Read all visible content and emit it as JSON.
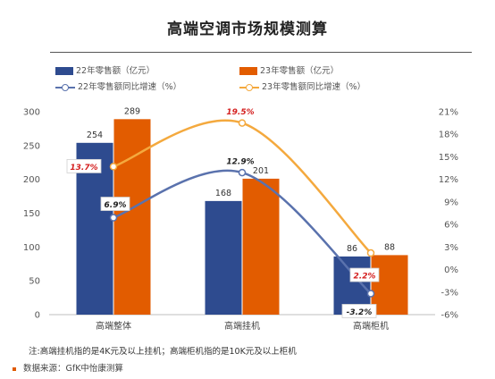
{
  "title": "高端空调市场规模测算",
  "legend": {
    "s1": "22年零售额（亿元）",
    "s2": "23年零售额（亿元）",
    "s3": "22年零售额同比增速（%）",
    "s4": "23年零售额同比增速（%）"
  },
  "footnote": "注:高端挂机指的是4K元及以上挂机；高端柜机指的是10K元及以上柜机",
  "source": "数据来源：GfK中怡康测算",
  "colors": {
    "bar22": "#2e4b8f",
    "bar23": "#e25c00",
    "line22": "#5a72ad",
    "line23": "#f4a93e",
    "pct_text": "#d42020"
  },
  "chart_data": {
    "type": "bar",
    "categories": [
      "高端整体",
      "高端挂机",
      "高端柜机"
    ],
    "series": [
      {
        "name": "22年零售额（亿元）",
        "type": "bar",
        "axis": "left",
        "values": [
          254,
          168,
          86
        ],
        "labels": [
          "254",
          "168",
          "86"
        ]
      },
      {
        "name": "23年零售额（亿元）",
        "type": "bar",
        "axis": "left",
        "values": [
          289,
          201,
          88
        ],
        "labels": [
          "289",
          "201",
          "88"
        ]
      },
      {
        "name": "22年零售额同比增速（%）",
        "type": "line",
        "axis": "right",
        "values": [
          6.9,
          12.9,
          -3.2
        ],
        "labels": [
          "6.9%",
          "12.9%",
          "-3.2%"
        ]
      },
      {
        "name": "23年零售额同比增速（%）",
        "type": "line",
        "axis": "right",
        "values": [
          13.7,
          19.5,
          2.2
        ],
        "labels": [
          "13.7%",
          "19.5%",
          "2.2%"
        ]
      }
    ],
    "ylim": [
      0,
      300
    ],
    "yticks": [
      "0",
      "50",
      "100",
      "150",
      "200",
      "250",
      "300"
    ],
    "y2lim": [
      -6,
      21
    ],
    "y2ticks": [
      "-6%",
      "-3%",
      "0%",
      "3%",
      "6%",
      "9%",
      "12%",
      "15%",
      "18%",
      "21%"
    ],
    "grid": false,
    "legend_position": "top"
  }
}
